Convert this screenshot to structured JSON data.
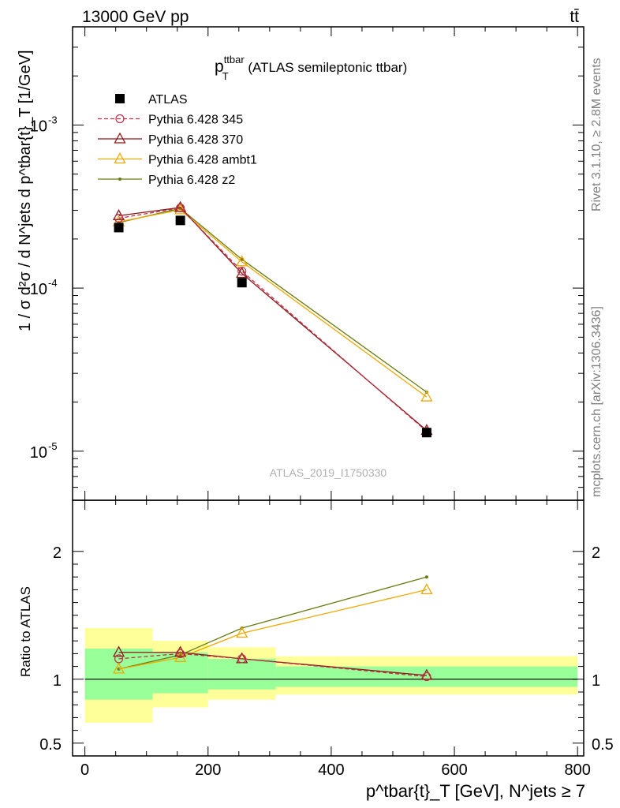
{
  "header": {
    "energy_label": "13000 GeV pp",
    "process_label": "tt̄"
  },
  "side_labels": {
    "rivet": "Rivet 3.1.10, ≥ 2.8M events",
    "mcplots": "mcplots.cern.ch [arXiv:1306.3436]"
  },
  "chart_data": [
    {
      "type": "line",
      "panel": "main",
      "title": {
        "main": "p",
        "sup": "ttbar",
        "sub": "T",
        "rest": " (ATLAS semileptonic ttbar)"
      },
      "ylabel": "1 / σ d²σ / d N^jets d p^tbar{t}_T [1/GeV]",
      "watermark": "ATLAS_2019_I1750330",
      "yscale": "log",
      "ylim": [
        5e-06,
        0.004
      ],
      "xlim": [
        -20,
        810
      ],
      "ytick_labels": [
        "10^-5",
        "10^-4",
        "10^-3"
      ],
      "grid": false,
      "legend_position": "top-left",
      "x": [
        55,
        155,
        255,
        555
      ],
      "bins": [
        [
          0,
          110
        ],
        [
          110,
          200
        ],
        [
          200,
          310
        ],
        [
          310,
          800
        ]
      ],
      "series": [
        {
          "name": "ATLAS",
          "color": "#000000",
          "marker": "filled-square",
          "values": [
            0.000235,
            0.00026,
            0.000108,
            1.3e-05
          ]
        },
        {
          "name": "Pythia 6.428 345",
          "color": "#c0314a",
          "marker": "open-circle",
          "dashed": true,
          "values": [
            0.000268,
            0.00031,
            0.000127,
            1.32e-05
          ]
        },
        {
          "name": "Pythia 6.428 370",
          "color": "#8b1a1a",
          "marker": "open-triangle",
          "values": [
            0.000278,
            0.000312,
            0.000123,
            1.34e-05
          ]
        },
        {
          "name": "Pythia 6.428 ambt1",
          "color": "#f0a800",
          "marker": "open-triangle",
          "values": [
            0.000255,
            0.000302,
            0.000145,
            2.15e-05
          ]
        },
        {
          "name": "Pythia 6.428 z2",
          "color": "#6b7a10",
          "marker": "dot",
          "values": [
            0.000252,
            0.000308,
            0.00015,
            2.3e-05
          ]
        }
      ]
    },
    {
      "type": "line",
      "panel": "ratio",
      "ylabel": "Ratio to ATLAS",
      "xlabel": "p^tbar{t}_T [GeV], N^jets ≥ 7",
      "ylim": [
        0.4,
        2.4
      ],
      "xlim": [
        -20,
        810
      ],
      "x_tick_labels": [
        "0",
        "200",
        "400",
        "600",
        "800"
      ],
      "y_tick_labels": [
        "0.5",
        "1",
        "2"
      ],
      "bands": {
        "bins": [
          [
            0,
            110
          ],
          [
            110,
            200
          ],
          [
            200,
            310
          ],
          [
            310,
            800
          ]
        ],
        "green": [
          [
            0.84,
            1.24
          ],
          [
            0.89,
            1.21
          ],
          [
            0.92,
            1.16
          ],
          [
            0.94,
            1.1
          ]
        ],
        "yellow": [
          [
            0.66,
            1.4
          ],
          [
            0.78,
            1.3
          ],
          [
            0.84,
            1.25
          ],
          [
            0.88,
            1.18
          ]
        ]
      },
      "x": [
        55,
        155,
        255,
        555
      ],
      "series": [
        {
          "name": "Pythia 6.428 345",
          "values": [
            1.16,
            1.2,
            1.16,
            1.02
          ]
        },
        {
          "name": "Pythia 6.428 370",
          "values": [
            1.21,
            1.21,
            1.16,
            1.03
          ]
        },
        {
          "name": "Pythia 6.428 ambt1",
          "values": [
            1.08,
            1.17,
            1.36,
            1.7
          ]
        },
        {
          "name": "Pythia 6.428 z2",
          "values": [
            1.08,
            1.19,
            1.4,
            1.8
          ]
        }
      ]
    }
  ]
}
